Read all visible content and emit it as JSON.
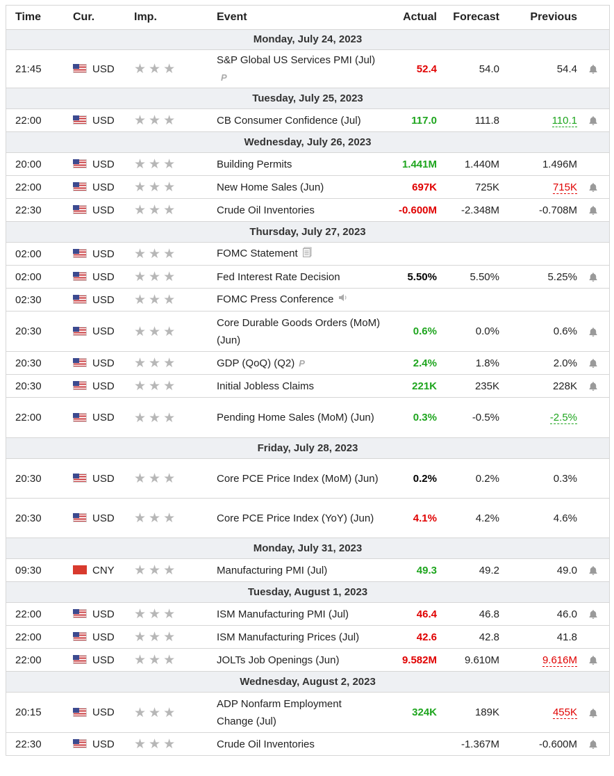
{
  "headers": {
    "time": "Time",
    "currency": "Cur.",
    "importance": "Imp.",
    "event": "Event",
    "actual": "Actual",
    "forecast": "Forecast",
    "previous": "Previous"
  },
  "colors": {
    "up": "#1ea51e",
    "down": "#e00000",
    "date_bg": "#eef0f3",
    "border": "#d6d6d6",
    "star": "#b7b7b7"
  },
  "stars": "★★★",
  "dates": [
    "Monday, July 24, 2023",
    "Tuesday, July 25, 2023",
    "Wednesday, July 26, 2023",
    "Thursday, July 27, 2023",
    "Friday, July 28, 2023",
    "Monday, July 31, 2023",
    "Tuesday, August 1, 2023",
    "Wednesday, August 2, 2023"
  ],
  "events": [
    {
      "time": "21:45",
      "currency": "USD",
      "flag": "us-flag-icon",
      "event": "S&P Global US Services PMI (Jul)",
      "badge": "P",
      "actual": "52.4",
      "actual_color": "red",
      "forecast": "54.0",
      "previous": "54.4",
      "previous_style": "",
      "bell": true
    },
    {
      "time": "22:00",
      "currency": "USD",
      "flag": "us-flag-icon",
      "event": "CB Consumer Confidence (Jul)",
      "actual": "117.0",
      "actual_color": "green",
      "forecast": "111.8",
      "previous": "110.1",
      "previous_style": "green",
      "bell": true
    },
    {
      "time": "20:00",
      "currency": "USD",
      "flag": "us-flag-icon",
      "event": "Building Permits",
      "actual": "1.441M",
      "actual_color": "green",
      "forecast": "1.440M",
      "previous": "1.496M",
      "previous_style": "",
      "bell": false
    },
    {
      "time": "22:00",
      "currency": "USD",
      "flag": "us-flag-icon",
      "event": "New Home Sales (Jun)",
      "actual": "697K",
      "actual_color": "red",
      "forecast": "725K",
      "previous": "715K",
      "previous_style": "red",
      "bell": true
    },
    {
      "time": "22:30",
      "currency": "USD",
      "flag": "us-flag-icon",
      "event": "Crude Oil Inventories",
      "actual": "-0.600M",
      "actual_color": "red",
      "forecast": "-2.348M",
      "previous": "-0.708M",
      "previous_style": "",
      "bell": true
    },
    {
      "time": "02:00",
      "currency": "USD",
      "flag": "us-flag-icon",
      "event": "FOMC Statement",
      "icon": "document-icon",
      "actual": "",
      "actual_color": "",
      "forecast": "",
      "previous": "",
      "previous_style": "",
      "bell": false
    },
    {
      "time": "02:00",
      "currency": "USD",
      "flag": "us-flag-icon",
      "event": "Fed Interest Rate Decision",
      "actual": "5.50%",
      "actual_color": "black",
      "forecast": "5.50%",
      "previous": "5.25%",
      "previous_style": "",
      "bell": true
    },
    {
      "time": "02:30",
      "currency": "USD",
      "flag": "us-flag-icon",
      "event": "FOMC Press Conference",
      "icon": "speaker-icon",
      "actual": "",
      "actual_color": "",
      "forecast": "",
      "previous": "",
      "previous_style": "",
      "bell": false
    },
    {
      "time": "20:30",
      "currency": "USD",
      "flag": "us-flag-icon",
      "event": "Core Durable Goods Orders (MoM) (Jun)",
      "actual": "0.6%",
      "actual_color": "green",
      "forecast": "0.0%",
      "previous": "0.6%",
      "previous_style": "",
      "bell": true
    },
    {
      "time": "20:30",
      "currency": "USD",
      "flag": "us-flag-icon",
      "event": "GDP (QoQ) (Q2)",
      "badge": "P",
      "actual": "2.4%",
      "actual_color": "green",
      "forecast": "1.8%",
      "previous": "2.0%",
      "previous_style": "",
      "bell": true
    },
    {
      "time": "20:30",
      "currency": "USD",
      "flag": "us-flag-icon",
      "event": "Initial Jobless Claims",
      "actual": "221K",
      "actual_color": "green",
      "forecast": "235K",
      "previous": "228K",
      "previous_style": "",
      "bell": true
    },
    {
      "time": "22:00",
      "currency": "USD",
      "flag": "us-flag-icon",
      "event": "Pending Home Sales (MoM) (Jun)",
      "actual": "0.3%",
      "actual_color": "green",
      "forecast": "-0.5%",
      "previous": "-2.5%",
      "previous_style": "green",
      "bell": false
    },
    {
      "time": "20:30",
      "currency": "USD",
      "flag": "us-flag-icon",
      "event": "Core PCE Price Index (MoM) (Jun)",
      "actual": "0.2%",
      "actual_color": "black",
      "forecast": "0.2%",
      "previous": "0.3%",
      "previous_style": "",
      "bell": false
    },
    {
      "time": "20:30",
      "currency": "USD",
      "flag": "us-flag-icon",
      "event": "Core PCE Price Index (YoY) (Jun)",
      "actual": "4.1%",
      "actual_color": "red",
      "forecast": "4.2%",
      "previous": "4.6%",
      "previous_style": "",
      "bell": false
    },
    {
      "time": "09:30",
      "currency": "CNY",
      "flag": "cn-flag-icon",
      "event": "Manufacturing PMI (Jul)",
      "actual": "49.3",
      "actual_color": "green",
      "forecast": "49.2",
      "previous": "49.0",
      "previous_style": "",
      "bell": true
    },
    {
      "time": "22:00",
      "currency": "USD",
      "flag": "us-flag-icon",
      "event": "ISM Manufacturing PMI (Jul)",
      "actual": "46.4",
      "actual_color": "red",
      "forecast": "46.8",
      "previous": "46.0",
      "previous_style": "",
      "bell": true
    },
    {
      "time": "22:00",
      "currency": "USD",
      "flag": "us-flag-icon",
      "event": "ISM Manufacturing Prices (Jul)",
      "actual": "42.6",
      "actual_color": "red",
      "forecast": "42.8",
      "previous": "41.8",
      "previous_style": "",
      "bell": false
    },
    {
      "time": "22:00",
      "currency": "USD",
      "flag": "us-flag-icon",
      "event": "JOLTs Job Openings (Jun)",
      "actual": "9.582M",
      "actual_color": "red",
      "forecast": "9.610M",
      "previous": "9.616M",
      "previous_style": "red",
      "bell": true
    },
    {
      "time": "20:15",
      "currency": "USD",
      "flag": "us-flag-icon",
      "event": "ADP Nonfarm Employment Change (Jul)",
      "actual": "324K",
      "actual_color": "green",
      "forecast": "189K",
      "previous": "455K",
      "previous_style": "red",
      "bell": true
    },
    {
      "time": "22:30",
      "currency": "USD",
      "flag": "us-flag-icon",
      "event": "Crude Oil Inventories",
      "actual": "",
      "actual_color": "",
      "forecast": "-1.367M",
      "previous": "-0.600M",
      "previous_style": "",
      "bell": true
    }
  ]
}
